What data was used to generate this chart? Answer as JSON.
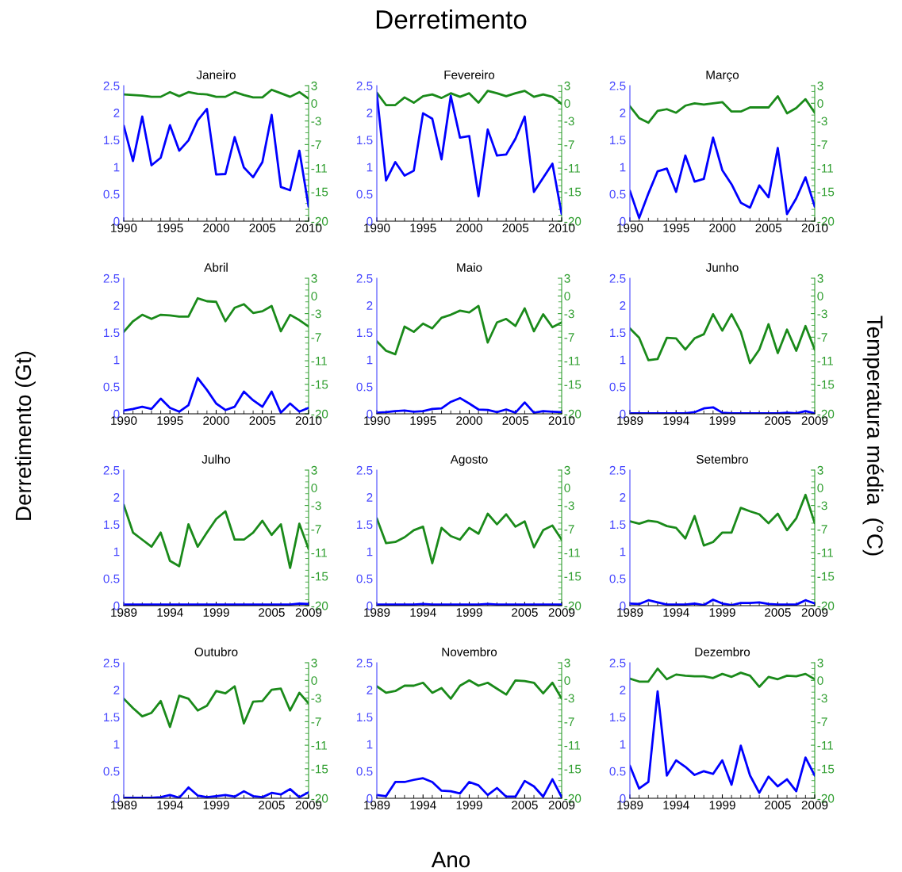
{
  "chart_data": [
    {
      "type": "line",
      "title": "Janeiro",
      "annotations": [
        "Derretimento",
        "Ano",
        "Derretimento (Gt)",
        "Temperatura média  (°C)"
      ],
      "x": [
        1990,
        1991,
        1992,
        1993,
        1994,
        1995,
        1996,
        1997,
        1998,
        1999,
        2000,
        2001,
        2002,
        2003,
        2004,
        2005,
        2006,
        2007,
        2008,
        2009,
        2010
      ],
      "xlim": [
        1990,
        2010
      ],
      "xticks": [
        1990,
        1995,
        2000,
        2005,
        2010
      ],
      "ylim": [
        0,
        2.5
      ],
      "yticks": [
        0,
        0.5,
        1,
        1.5,
        2,
        2.5
      ],
      "y2lim": [
        -20,
        3
      ],
      "y2ticks": [
        3,
        0,
        -3,
        -7,
        -11,
        -15,
        -20
      ],
      "series": [
        {
          "color": "#0000ff",
          "values": [
            1.76,
            1.11,
            1.93,
            1.03,
            1.17,
            1.77,
            1.3,
            1.49,
            1.86,
            2.07,
            0.86,
            0.87,
            1.55,
            0.99,
            0.81,
            1.09,
            1.96,
            0.63,
            0.57,
            1.3,
            0.27
          ]
        },
        {
          "color": "#1a8a1a",
          "axis": "y2",
          "values": [
            1.5,
            1.4,
            1.3,
            1.1,
            1.1,
            1.9,
            1.2,
            1.9,
            1.6,
            1.5,
            1.1,
            1.1,
            1.9,
            1.4,
            1.0,
            1.0,
            2.3,
            1.7,
            1.1,
            1.9,
            0.8
          ]
        }
      ]
    },
    {
      "type": "line",
      "title": "Fevereiro",
      "x": [
        1990,
        1991,
        1992,
        1993,
        1994,
        1995,
        1996,
        1997,
        1998,
        1999,
        2000,
        2001,
        2002,
        2003,
        2004,
        2005,
        2006,
        2007,
        2008,
        2009,
        2010
      ],
      "xlim": [
        1990,
        2010
      ],
      "xticks": [
        1990,
        1995,
        2000,
        2005,
        2010
      ],
      "ylim": [
        0,
        2.5
      ],
      "yticks": [
        0,
        0.5,
        1,
        1.5,
        2,
        2.5
      ],
      "y2lim": [
        -20,
        3
      ],
      "y2ticks": [
        3,
        0,
        -3,
        -7,
        -11,
        -15,
        -20
      ],
      "series": [
        {
          "color": "#0000ff",
          "values": [
            2.35,
            0.75,
            1.09,
            0.84,
            0.93,
            1.99,
            1.89,
            1.14,
            2.31,
            1.54,
            1.57,
            0.46,
            1.69,
            1.21,
            1.23,
            1.52,
            1.93,
            0.54,
            0.8,
            1.06,
            0.13
          ]
        },
        {
          "color": "#1a8a1a",
          "axis": "y2",
          "values": [
            1.8,
            -0.3,
            -0.3,
            1.0,
            0.1,
            1.2,
            1.5,
            0.9,
            1.7,
            1.1,
            1.7,
            0.1,
            2.1,
            1.7,
            1.2,
            1.7,
            2.1,
            1.1,
            1.5,
            1.1,
            -0.1
          ]
        }
      ]
    },
    {
      "type": "line",
      "title": "Março",
      "x": [
        1990,
        1991,
        1992,
        1993,
        1994,
        1995,
        1996,
        1997,
        1998,
        1999,
        2000,
        2001,
        2002,
        2003,
        2004,
        2005,
        2006,
        2007,
        2008,
        2009,
        2010
      ],
      "xlim": [
        1990,
        2010
      ],
      "xticks": [
        1990,
        1995,
        2000,
        2005,
        2010
      ],
      "ylim": [
        0,
        2.5
      ],
      "yticks": [
        0,
        0.5,
        1,
        1.5,
        2,
        2.5
      ],
      "y2lim": [
        -20,
        3
      ],
      "y2ticks": [
        3,
        0,
        -3,
        -7,
        -11,
        -15,
        -20
      ],
      "series": [
        {
          "color": "#0000ff",
          "values": [
            0.56,
            0.06,
            0.51,
            0.92,
            0.97,
            0.54,
            1.21,
            0.73,
            0.78,
            1.54,
            0.94,
            0.68,
            0.34,
            0.25,
            0.66,
            0.44,
            1.35,
            0.13,
            0.42,
            0.81,
            0.27
          ]
        },
        {
          "color": "#1a8a1a",
          "axis": "y2",
          "values": [
            -0.5,
            -2.5,
            -3.3,
            -1.3,
            -1.0,
            -1.6,
            -0.4,
            0.0,
            -0.2,
            0.0,
            0.2,
            -1.4,
            -1.4,
            -0.7,
            -0.7,
            -0.7,
            1.2,
            -1.7,
            -0.8,
            0.7,
            -1.6
          ]
        }
      ]
    },
    {
      "type": "line",
      "title": "Abril",
      "x": [
        1990,
        1991,
        1992,
        1993,
        1994,
        1995,
        1996,
        1997,
        1998,
        1999,
        2000,
        2001,
        2002,
        2003,
        2004,
        2005,
        2006,
        2007,
        2008,
        2009,
        2010
      ],
      "xlim": [
        1990,
        2010
      ],
      "xticks": [
        1990,
        1995,
        2000,
        2005,
        2010
      ],
      "ylim": [
        0,
        2.5
      ],
      "yticks": [
        0,
        0.5,
        1,
        1.5,
        2,
        2.5
      ],
      "y2lim": [
        -20,
        3
      ],
      "y2ticks": [
        3,
        0,
        -3,
        -7,
        -11,
        -15,
        -20
      ],
      "series": [
        {
          "color": "#0000ff",
          "values": [
            0.06,
            0.09,
            0.13,
            0.09,
            0.28,
            0.11,
            0.04,
            0.16,
            0.66,
            0.44,
            0.19,
            0.07,
            0.13,
            0.41,
            0.25,
            0.13,
            0.41,
            0.02,
            0.19,
            0.04,
            0.11
          ]
        },
        {
          "color": "#1a8a1a",
          "axis": "y2",
          "values": [
            -6.1,
            -4.3,
            -3.2,
            -3.9,
            -3.2,
            -3.3,
            -3.5,
            -3.5,
            -0.4,
            -0.9,
            -1.0,
            -4.3,
            -2.0,
            -1.4,
            -2.9,
            -2.6,
            -1.7,
            -6.0,
            -3.2,
            -4.1,
            -5.2
          ]
        }
      ]
    },
    {
      "type": "line",
      "title": "Maio",
      "x": [
        1990,
        1991,
        1992,
        1993,
        1994,
        1995,
        1996,
        1997,
        1998,
        1999,
        2000,
        2001,
        2002,
        2003,
        2004,
        2005,
        2006,
        2007,
        2008,
        2009,
        2010
      ],
      "xlim": [
        1990,
        2010
      ],
      "xticks": [
        1990,
        1995,
        2000,
        2005,
        2010
      ],
      "ylim": [
        0,
        2.5
      ],
      "yticks": [
        0,
        0.5,
        1,
        1.5,
        2,
        2.5
      ],
      "y2lim": [
        -20,
        3
      ],
      "y2ticks": [
        3,
        0,
        -3,
        -7,
        -11,
        -15,
        -20
      ],
      "series": [
        {
          "color": "#0000ff",
          "values": [
            0.02,
            0.03,
            0.05,
            0.06,
            0.04,
            0.05,
            0.09,
            0.1,
            0.22,
            0.29,
            0.19,
            0.08,
            0.07,
            0.03,
            0.08,
            0.02,
            0.21,
            0.02,
            0.05,
            0.04,
            0.03
          ]
        },
        {
          "color": "#1a8a1a",
          "axis": "y2",
          "values": [
            -7.7,
            -9.3,
            -9.9,
            -5.2,
            -6.1,
            -4.7,
            -5.5,
            -3.7,
            -3.2,
            -2.5,
            -2.8,
            -1.7,
            -7.9,
            -4.5,
            -3.9,
            -5.1,
            -2.1,
            -6.0,
            -3.1,
            -5.3,
            -4.5
          ]
        }
      ]
    },
    {
      "type": "line",
      "title": "Junho",
      "x": [
        1989,
        1990,
        1991,
        1992,
        1993,
        1994,
        1995,
        1996,
        1997,
        1998,
        1999,
        2000,
        2001,
        2002,
        2003,
        2004,
        2005,
        2006,
        2007,
        2008,
        2009
      ],
      "xlim": [
        1989,
        2009
      ],
      "xticks": [
        1989,
        1994,
        1999,
        2005,
        2009
      ],
      "ylim": [
        0,
        2.5
      ],
      "yticks": [
        0,
        0.5,
        1,
        1.5,
        2,
        2.5
      ],
      "y2lim": [
        -20,
        3
      ],
      "y2ticks": [
        3,
        0,
        -3,
        -7,
        -11,
        -15,
        -20
      ],
      "series": [
        {
          "color": "#0000ff",
          "values": [
            0.01,
            0.01,
            0.01,
            0.01,
            0.01,
            0.01,
            0.01,
            0.03,
            0.1,
            0.12,
            0.02,
            0.01,
            0.01,
            0.01,
            0.01,
            0.01,
            0.01,
            0.02,
            0.01,
            0.05,
            0.01
          ]
        },
        {
          "color": "#1a8a1a",
          "axis": "y2",
          "values": [
            -5.5,
            -7.1,
            -10.9,
            -10.7,
            -7.1,
            -7.2,
            -9.1,
            -7.2,
            -6.5,
            -3.1,
            -5.9,
            -3.1,
            -6.1,
            -11.4,
            -9.1,
            -4.8,
            -9.7,
            -5.7,
            -9.3,
            -5.1,
            -9.1
          ]
        }
      ]
    },
    {
      "type": "line",
      "title": "Julho",
      "x": [
        1989,
        1990,
        1991,
        1992,
        1993,
        1994,
        1995,
        1996,
        1997,
        1998,
        1999,
        2000,
        2001,
        2002,
        2003,
        2004,
        2005,
        2006,
        2007,
        2008,
        2009
      ],
      "xlim": [
        1989,
        2009
      ],
      "xticks": [
        1989,
        1994,
        1999,
        2005,
        2009
      ],
      "ylim": [
        0,
        2.5
      ],
      "yticks": [
        0,
        0.5,
        1,
        1.5,
        2,
        2.5
      ],
      "y2lim": [
        -20,
        3
      ],
      "y2ticks": [
        3,
        0,
        -3,
        -7,
        -11,
        -15,
        -20
      ],
      "series": [
        {
          "color": "#0000ff",
          "values": [
            0.02,
            0.02,
            0.02,
            0.02,
            0.02,
            0.02,
            0.02,
            0.02,
            0.02,
            0.02,
            0.02,
            0.02,
            0.02,
            0.02,
            0.02,
            0.02,
            0.02,
            0.02,
            0.02,
            0.04,
            0.03
          ]
        },
        {
          "color": "#1a8a1a",
          "axis": "y2",
          "values": [
            -2.9,
            -7.6,
            -8.8,
            -10.0,
            -7.6,
            -12.4,
            -13.3,
            -6.2,
            -10.0,
            -7.6,
            -5.3,
            -4.0,
            -8.8,
            -8.8,
            -7.6,
            -5.6,
            -8.0,
            -6.2,
            -13.6,
            -6.1,
            -10.4
          ]
        }
      ]
    },
    {
      "type": "line",
      "title": "Agosto",
      "x": [
        1989,
        1990,
        1991,
        1992,
        1993,
        1994,
        1995,
        1996,
        1997,
        1998,
        1999,
        2000,
        2001,
        2002,
        2003,
        2004,
        2005,
        2006,
        2007,
        2008,
        2009
      ],
      "xlim": [
        1989,
        2009
      ],
      "xticks": [
        1989,
        1994,
        1999,
        2005,
        2009
      ],
      "ylim": [
        0,
        2.5
      ],
      "yticks": [
        0,
        0.5,
        1,
        1.5,
        2,
        2.5
      ],
      "y2lim": [
        -20,
        3
      ],
      "y2ticks": [
        3,
        0,
        -3,
        -7,
        -11,
        -15,
        -20
      ],
      "series": [
        {
          "color": "#0000ff",
          "values": [
            0.02,
            0.02,
            0.02,
            0.02,
            0.02,
            0.03,
            0.02,
            0.02,
            0.02,
            0.02,
            0.02,
            0.02,
            0.03,
            0.02,
            0.02,
            0.02,
            0.02,
            0.02,
            0.02,
            0.02,
            0.02
          ]
        },
        {
          "color": "#1a8a1a",
          "axis": "y2",
          "values": [
            -5.2,
            -9.4,
            -9.2,
            -8.4,
            -7.2,
            -6.6,
            -12.8,
            -6.8,
            -8.2,
            -8.8,
            -6.8,
            -7.8,
            -4.4,
            -6.2,
            -4.5,
            -6.6,
            -5.7,
            -10.1,
            -7.2,
            -6.4,
            -8.8
          ]
        }
      ]
    },
    {
      "type": "line",
      "title": "Setembro",
      "x": [
        1989,
        1990,
        1991,
        1992,
        1993,
        1994,
        1995,
        1996,
        1997,
        1998,
        1999,
        2000,
        2001,
        2002,
        2003,
        2004,
        2005,
        2006,
        2007,
        2008,
        2009
      ],
      "xlim": [
        1989,
        2009
      ],
      "xticks": [
        1989,
        1994,
        1999,
        2005,
        2009
      ],
      "ylim": [
        0,
        2.5
      ],
      "yticks": [
        0,
        0.5,
        1,
        1.5,
        2,
        2.5
      ],
      "y2lim": [
        -20,
        3
      ],
      "y2ticks": [
        3,
        0,
        -3,
        -7,
        -11,
        -15,
        -20
      ],
      "series": [
        {
          "color": "#0000ff",
          "values": [
            0.04,
            0.03,
            0.1,
            0.06,
            0.02,
            0.02,
            0.02,
            0.04,
            0.01,
            0.11,
            0.04,
            0.01,
            0.05,
            0.05,
            0.06,
            0.03,
            0.02,
            0.02,
            0.02,
            0.1,
            0.04
          ]
        },
        {
          "color": "#1a8a1a",
          "axis": "y2",
          "values": [
            -5.7,
            -6.1,
            -5.6,
            -5.8,
            -6.5,
            -6.8,
            -8.6,
            -4.8,
            -9.8,
            -9.2,
            -7.6,
            -7.6,
            -3.4,
            -4.0,
            -4.5,
            -6.0,
            -4.4,
            -7.2,
            -5.2,
            -1.2,
            -6.0
          ]
        }
      ]
    },
    {
      "type": "line",
      "title": "Outubro",
      "x": [
        1989,
        1990,
        1991,
        1992,
        1993,
        1994,
        1995,
        1996,
        1997,
        1998,
        1999,
        2000,
        2001,
        2002,
        2003,
        2004,
        2005,
        2006,
        2007,
        2008,
        2009
      ],
      "xlim": [
        1989,
        2009
      ],
      "xticks": [
        1989,
        1994,
        1999,
        2005,
        2009
      ],
      "ylim": [
        0,
        2.5
      ],
      "yticks": [
        0,
        0.5,
        1,
        1.5,
        2,
        2.5
      ],
      "y2lim": [
        -20,
        3
      ],
      "y2ticks": [
        3,
        0,
        -3,
        -7,
        -11,
        -15,
        -20
      ],
      "series": [
        {
          "color": "#0000ff",
          "values": [
            0.01,
            0.01,
            0.01,
            0.01,
            0.02,
            0.06,
            0.01,
            0.2,
            0.05,
            0.02,
            0.04,
            0.06,
            0.03,
            0.13,
            0.04,
            0.02,
            0.1,
            0.07,
            0.17,
            0.02,
            0.11
          ]
        },
        {
          "color": "#1a8a1a",
          "axis": "y2",
          "values": [
            -3.1,
            -4.7,
            -6.1,
            -5.5,
            -3.5,
            -7.9,
            -2.6,
            -3.1,
            -5.1,
            -4.3,
            -1.8,
            -2.2,
            -1.0,
            -7.3,
            -3.6,
            -3.5,
            -1.6,
            -1.4,
            -5.1,
            -2.1,
            -3.9
          ]
        }
      ]
    },
    {
      "type": "line",
      "title": "Novembro",
      "x": [
        1989,
        1990,
        1991,
        1992,
        1993,
        1994,
        1995,
        1996,
        1997,
        1998,
        1999,
        2000,
        2001,
        2002,
        2003,
        2004,
        2005,
        2006,
        2007,
        2008,
        2009
      ],
      "xlim": [
        1989,
        2009
      ],
      "xticks": [
        1989,
        1994,
        1999,
        2005,
        2009
      ],
      "ylim": [
        0,
        2.5
      ],
      "yticks": [
        0,
        0.5,
        1,
        1.5,
        2,
        2.5
      ],
      "y2lim": [
        -20,
        3
      ],
      "y2ticks": [
        3,
        0,
        -3,
        -7,
        -11,
        -15,
        -20
      ],
      "series": [
        {
          "color": "#0000ff",
          "values": [
            0.06,
            0.04,
            0.3,
            0.3,
            0.34,
            0.37,
            0.3,
            0.14,
            0.13,
            0.09,
            0.3,
            0.24,
            0.06,
            0.19,
            0.03,
            0.03,
            0.32,
            0.22,
            0.03,
            0.35,
            0.02
          ]
        },
        {
          "color": "#1a8a1a",
          "axis": "y2",
          "values": [
            -1.0,
            -2.1,
            -1.8,
            -0.9,
            -0.9,
            -0.4,
            -2.1,
            -1.3,
            -3.1,
            -0.9,
            0.0,
            -0.9,
            -0.4,
            -1.4,
            -2.4,
            0.0,
            -0.1,
            -0.4,
            -2.2,
            -0.4,
            -3.1
          ]
        }
      ]
    },
    {
      "type": "line",
      "title": "Dezembro",
      "x": [
        1989,
        1990,
        1991,
        1992,
        1993,
        1994,
        1995,
        1996,
        1997,
        1998,
        1999,
        2000,
        2001,
        2002,
        2003,
        2004,
        2005,
        2006,
        2007,
        2008,
        2009
      ],
      "xlim": [
        1989,
        2009
      ],
      "xticks": [
        1989,
        1994,
        1999,
        2005,
        2009
      ],
      "ylim": [
        0,
        2.5
      ],
      "yticks": [
        0,
        0.5,
        1,
        1.5,
        2,
        2.5
      ],
      "y2lim": [
        -20,
        3
      ],
      "y2ticks": [
        3,
        0,
        -3,
        -7,
        -11,
        -15,
        -20
      ],
      "series": [
        {
          "color": "#0000ff",
          "values": [
            0.6,
            0.18,
            0.3,
            1.97,
            0.42,
            0.7,
            0.58,
            0.43,
            0.5,
            0.45,
            0.7,
            0.25,
            0.97,
            0.42,
            0.1,
            0.4,
            0.22,
            0.35,
            0.13,
            0.75,
            0.42
          ]
        },
        {
          "color": "#1a8a1a",
          "axis": "y2",
          "values": [
            0.3,
            -0.2,
            -0.2,
            2.0,
            0.2,
            1.0,
            0.8,
            0.7,
            0.7,
            0.4,
            1.1,
            0.6,
            1.3,
            0.8,
            -1.1,
            0.6,
            0.2,
            0.8,
            0.7,
            1.1,
            0.2
          ]
        }
      ]
    }
  ]
}
